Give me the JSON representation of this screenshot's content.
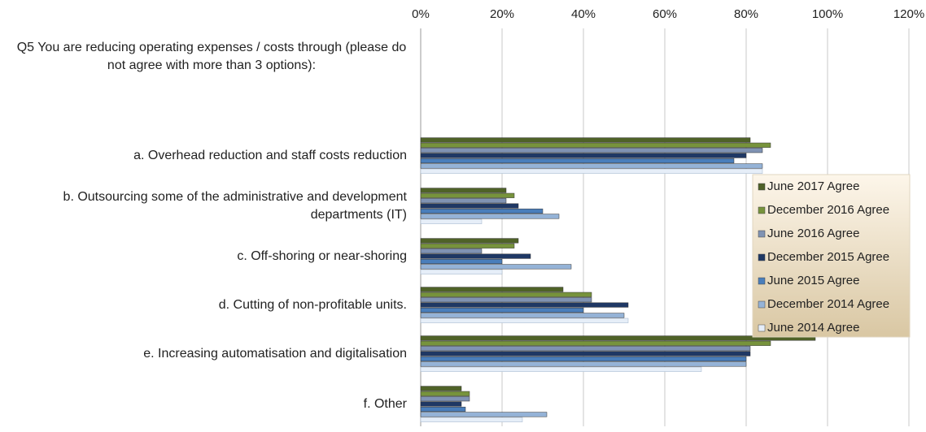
{
  "chart_data": {
    "type": "hbar",
    "title": "Q5 You are reducing operating expenses / costs through (please do not agree with more than 3 options):",
    "categories": [
      "a. Overhead reduction and staff costs reduction",
      "b. Outsourcing some of the administrative and development departments (IT)",
      "c. Off-shoring or near-shoring",
      "d. Cutting of non-profitable units.",
      "e. Increasing automatisation and digitalisation",
      "f. Other"
    ],
    "series": [
      {
        "name": "June 2017 Agree",
        "color": "#4f6228",
        "values": [
          81,
          21,
          24,
          35,
          97,
          10
        ]
      },
      {
        "name": "December 2016  Agree",
        "color": "#77933c",
        "values": [
          86,
          23,
          23,
          42,
          86,
          12
        ]
      },
      {
        "name": "June 2016  Agree",
        "color": "#8093b3",
        "values": [
          84,
          21,
          15,
          42,
          81,
          12
        ]
      },
      {
        "name": "December 2015  Agree",
        "color": "#1f3864",
        "values": [
          80,
          24,
          27,
          51,
          81,
          10
        ]
      },
      {
        "name": "June 2015  Agree",
        "color": "#4a7ebb",
        "values": [
          77,
          30,
          20,
          40,
          80,
          11
        ]
      },
      {
        "name": "December 2014  Agree",
        "color": "#95b3d7",
        "values": [
          84,
          34,
          37,
          50,
          80,
          31
        ]
      },
      {
        "name": "June 2014  Agree",
        "color": "#e6eef8",
        "values": [
          84,
          15,
          20,
          51,
          69,
          25
        ]
      }
    ],
    "xlim": [
      0,
      120
    ],
    "xticks": [
      {
        "value": 0,
        "label": "0%"
      },
      {
        "value": 20,
        "label": "20%"
      },
      {
        "value": 40,
        "label": "40%"
      },
      {
        "value": 60,
        "label": "60%"
      },
      {
        "value": 80,
        "label": "80%"
      },
      {
        "value": 100,
        "label": "100%"
      },
      {
        "value": 120,
        "label": "120%"
      }
    ],
    "grid": true,
    "legend": "right"
  }
}
